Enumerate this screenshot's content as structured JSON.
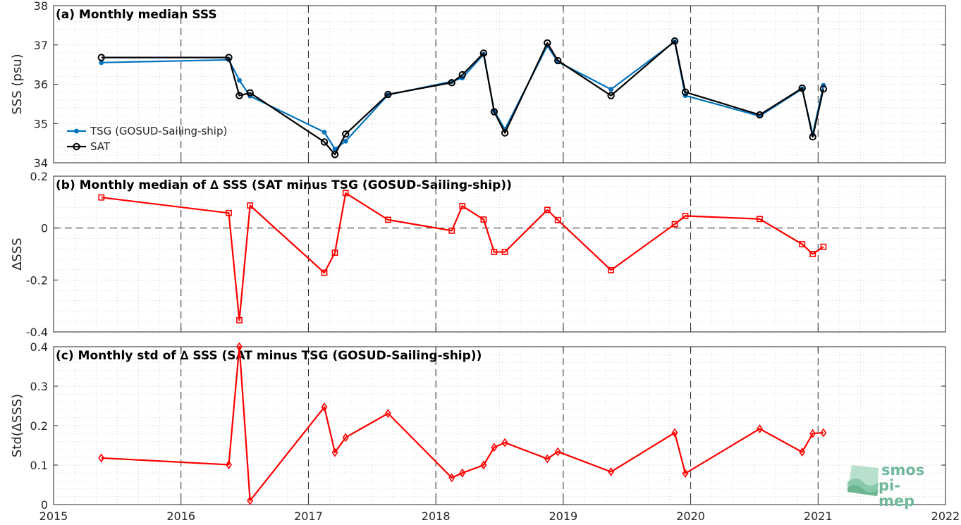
{
  "chart_data": [
    {
      "type": "line",
      "panel": "a",
      "title": "(a) Monthly median SSS",
      "ylabel": "SSS (psu)",
      "ylim": [
        34,
        38
      ],
      "yticks": [
        34,
        35,
        36,
        37,
        38
      ],
      "xlim": [
        2015,
        2022
      ],
      "xticks": [
        2015,
        2016,
        2017,
        2018,
        2019,
        2020,
        2021,
        2022
      ],
      "grid": true,
      "legend_position": "bottom-left",
      "series": [
        {
          "name": "TSG (GOSUD-Sailing-ship)",
          "color": "#0072BD",
          "marker": "dot",
          "x": [
            2015.375,
            2016.375,
            2016.458,
            2016.542,
            2017.125,
            2017.208,
            2017.292,
            2017.625,
            2018.125,
            2018.208,
            2018.375,
            2018.458,
            2018.542,
            2018.875,
            2018.958,
            2019.375,
            2019.875,
            2019.958,
            2020.542,
            2020.875,
            2020.958,
            2021.042
          ],
          "y": [
            36.55,
            36.62,
            36.1,
            35.7,
            34.78,
            34.35,
            34.55,
            35.73,
            36.07,
            36.16,
            36.76,
            35.32,
            34.85,
            36.98,
            36.57,
            35.87,
            37.08,
            35.71,
            35.19,
            35.88,
            34.72,
            35.97
          ]
        },
        {
          "name": "SAT",
          "color": "#000000",
          "marker": "circle",
          "x": [
            2015.375,
            2016.375,
            2016.458,
            2016.542,
            2017.125,
            2017.208,
            2017.292,
            2017.625,
            2018.125,
            2018.208,
            2018.375,
            2018.458,
            2018.542,
            2018.875,
            2018.958,
            2019.375,
            2019.875,
            2019.958,
            2020.542,
            2020.875,
            2020.958,
            2021.042
          ],
          "y": [
            36.68,
            36.68,
            35.71,
            35.78,
            34.53,
            34.21,
            34.73,
            35.74,
            36.04,
            36.24,
            36.79,
            35.3,
            34.76,
            37.05,
            36.6,
            35.71,
            37.1,
            35.8,
            35.22,
            35.9,
            34.66,
            35.88
          ]
        }
      ]
    },
    {
      "type": "line",
      "panel": "b",
      "title": "(b) Monthly median of ∆ SSS (SAT minus TSG (GOSUD-Sailing-ship))",
      "ylabel": "∆SSS",
      "ylim": [
        -0.4,
        0.2
      ],
      "yticks": [
        -0.4,
        -0.2,
        0,
        0.2
      ],
      "ytick_labels": [
        "-0.4",
        "-0.2",
        "0",
        "0.2"
      ],
      "xlim": [
        2015,
        2022
      ],
      "grid": true,
      "zero_line": true,
      "series": [
        {
          "color": "#FF0000",
          "marker": "square",
          "x": [
            2015.375,
            2016.375,
            2016.458,
            2016.542,
            2017.125,
            2017.208,
            2017.292,
            2017.625,
            2018.125,
            2018.208,
            2018.375,
            2018.458,
            2018.542,
            2018.875,
            2018.958,
            2019.375,
            2019.875,
            2019.958,
            2020.542,
            2020.875,
            2020.958,
            2021.042
          ],
          "y": [
            0.118,
            0.058,
            -0.355,
            0.087,
            -0.172,
            -0.095,
            0.135,
            0.032,
            -0.01,
            0.085,
            0.033,
            -0.092,
            -0.092,
            0.07,
            0.031,
            -0.162,
            0.015,
            0.047,
            0.035,
            -0.062,
            -0.1,
            -0.072
          ]
        }
      ]
    },
    {
      "type": "line",
      "panel": "c",
      "title": "(c) Monthly std of ∆ SSS (SAT minus TSG (GOSUD-Sailing-ship))",
      "ylabel": "Std(∆SSS)",
      "ylim": [
        0,
        0.4
      ],
      "yticks": [
        0,
        0.1,
        0.2,
        0.3,
        0.4
      ],
      "ytick_labels": [
        "0",
        "0.1",
        "0.2",
        "0.3",
        "0.4"
      ],
      "xlim": [
        2015,
        2022
      ],
      "xticks": [
        2015,
        2016,
        2017,
        2018,
        2019,
        2020,
        2021,
        2022
      ],
      "xtick_labels": [
        "2015",
        "2016",
        "2017",
        "2018",
        "2019",
        "2020",
        "2021",
        "2022"
      ],
      "grid": true,
      "series": [
        {
          "color": "#FF0000",
          "marker": "diamond",
          "x": [
            2015.375,
            2016.375,
            2016.458,
            2016.542,
            2017.125,
            2017.208,
            2017.292,
            2017.625,
            2018.125,
            2018.208,
            2018.375,
            2018.458,
            2018.542,
            2018.875,
            2018.958,
            2019.375,
            2019.875,
            2019.958,
            2020.542,
            2020.875,
            2020.958,
            2021.042
          ],
          "y": [
            0.118,
            0.101,
            0.4,
            0.01,
            0.247,
            0.132,
            0.17,
            0.231,
            0.068,
            0.08,
            0.1,
            0.145,
            0.157,
            0.116,
            0.134,
            0.083,
            0.182,
            0.079,
            0.192,
            0.133,
            0.18,
            0.182
          ]
        }
      ]
    }
  ],
  "logo": {
    "line1": "smos",
    "line2": "pi-mep"
  }
}
